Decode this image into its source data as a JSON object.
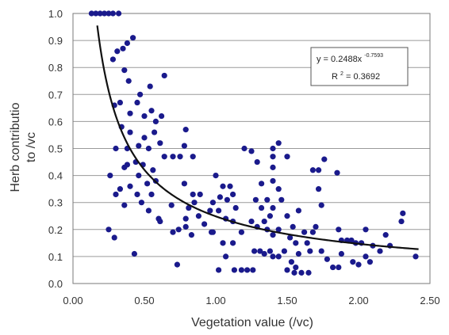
{
  "chart_data": {
    "type": "scatter",
    "xlabel": "Vegetation value (/vc)",
    "ylabel_lines": [
      "Herb contributio",
      "to /vc"
    ],
    "xlim": [
      0,
      2.5
    ],
    "ylim": [
      0,
      1.0
    ],
    "x_ticks": [
      "0.00",
      "0.50",
      "1.00",
      "1.50",
      "2.00",
      "2.50"
    ],
    "y_ticks": [
      "0.0",
      "0.1",
      "0.2",
      "0.3",
      "0.4",
      "0.5",
      "0.6",
      "0.7",
      "0.8",
      "0.9",
      "1.0"
    ],
    "grid": "horizontal",
    "marker_color": "#1a1a8c",
    "trend_color": "#111111",
    "trendline": {
      "type": "power",
      "coefficient": 0.2488,
      "exponent": -0.7593
    },
    "equation": {
      "base": "y = 0.2488x",
      "exponent": "-0.7593"
    },
    "r_squared": {
      "label": "R",
      "power": "2",
      "text": " = 0.3692"
    },
    "points": [
      [
        0.13,
        1.0
      ],
      [
        0.16,
        1.0
      ],
      [
        0.19,
        1.0
      ],
      [
        0.22,
        1.0
      ],
      [
        0.25,
        1.0
      ],
      [
        0.28,
        1.0
      ],
      [
        0.32,
        1.0
      ],
      [
        0.28,
        0.83
      ],
      [
        0.31,
        0.86
      ],
      [
        0.35,
        0.87
      ],
      [
        0.38,
        0.89
      ],
      [
        0.42,
        0.91
      ],
      [
        0.36,
        0.79
      ],
      [
        0.39,
        0.75
      ],
      [
        0.64,
        0.77
      ],
      [
        0.47,
        0.7
      ],
      [
        0.54,
        0.73
      ],
      [
        0.5,
        0.62
      ],
      [
        0.55,
        0.64
      ],
      [
        0.58,
        0.6
      ],
      [
        0.62,
        0.62
      ],
      [
        0.45,
        0.67
      ],
      [
        0.4,
        0.63
      ],
      [
        0.33,
        0.67
      ],
      [
        0.29,
        0.66
      ],
      [
        0.34,
        0.58
      ],
      [
        0.4,
        0.56
      ],
      [
        0.5,
        0.54
      ],
      [
        0.57,
        0.56
      ],
      [
        0.61,
        0.52
      ],
      [
        0.3,
        0.5
      ],
      [
        0.38,
        0.5
      ],
      [
        0.46,
        0.51
      ],
      [
        0.53,
        0.5
      ],
      [
        0.64,
        0.47
      ],
      [
        0.44,
        0.45
      ],
      [
        0.49,
        0.44
      ],
      [
        0.38,
        0.44
      ],
      [
        0.26,
        0.4
      ],
      [
        0.36,
        0.43
      ],
      [
        0.46,
        0.4
      ],
      [
        0.56,
        0.42
      ],
      [
        0.33,
        0.35
      ],
      [
        0.4,
        0.36
      ],
      [
        0.52,
        0.37
      ],
      [
        0.58,
        0.38
      ],
      [
        0.3,
        0.33
      ],
      [
        0.45,
        0.33
      ],
      [
        0.55,
        0.33
      ],
      [
        0.36,
        0.29
      ],
      [
        0.48,
        0.3
      ],
      [
        0.53,
        0.27
      ],
      [
        0.6,
        0.24
      ],
      [
        0.25,
        0.2
      ],
      [
        0.29,
        0.17
      ],
      [
        0.43,
        0.11
      ],
      [
        0.61,
        0.23
      ],
      [
        0.69,
        0.29
      ],
      [
        0.74,
        0.2
      ],
      [
        0.79,
        0.57
      ],
      [
        0.78,
        0.51
      ],
      [
        0.7,
        0.47
      ],
      [
        0.75,
        0.47
      ],
      [
        0.84,
        0.47
      ],
      [
        0.78,
        0.37
      ],
      [
        0.84,
        0.33
      ],
      [
        0.81,
        0.28
      ],
      [
        0.85,
        0.3
      ],
      [
        0.88,
        0.25
      ],
      [
        0.92,
        0.22
      ],
      [
        0.97,
        0.19
      ],
      [
        0.89,
        0.33
      ],
      [
        0.79,
        0.24
      ],
      [
        0.83,
        0.18
      ],
      [
        0.79,
        0.21
      ],
      [
        0.7,
        0.19
      ],
      [
        0.73,
        0.07
      ],
      [
        0.96,
        0.27
      ],
      [
        1.0,
        0.4
      ],
      [
        1.05,
        0.36
      ],
      [
        1.1,
        0.36
      ],
      [
        1.12,
        0.33
      ],
      [
        1.03,
        0.32
      ],
      [
        1.08,
        0.31
      ],
      [
        1.14,
        0.28
      ],
      [
        0.98,
        0.3
      ],
      [
        1.02,
        0.27
      ],
      [
        1.07,
        0.24
      ],
      [
        1.12,
        0.23
      ],
      [
        0.98,
        0.19
      ],
      [
        1.05,
        0.15
      ],
      [
        1.12,
        0.15
      ],
      [
        1.18,
        0.19
      ],
      [
        1.25,
        0.23
      ],
      [
        1.29,
        0.21
      ],
      [
        1.02,
        0.05
      ],
      [
        1.07,
        0.1
      ],
      [
        1.13,
        0.05
      ],
      [
        1.18,
        0.05
      ],
      [
        1.22,
        0.05
      ],
      [
        1.26,
        0.05
      ],
      [
        1.2,
        0.5
      ],
      [
        1.25,
        0.49
      ],
      [
        1.29,
        0.45
      ],
      [
        1.32,
        0.37
      ],
      [
        1.36,
        0.31
      ],
      [
        1.28,
        0.31
      ],
      [
        1.32,
        0.28
      ],
      [
        1.38,
        0.25
      ],
      [
        1.34,
        0.23
      ],
      [
        1.36,
        0.2
      ],
      [
        1.4,
        0.28
      ],
      [
        1.38,
        0.12
      ],
      [
        1.31,
        0.12
      ],
      [
        1.34,
        0.11
      ],
      [
        1.27,
        0.12
      ],
      [
        1.4,
        0.5
      ],
      [
        1.44,
        0.52
      ],
      [
        1.4,
        0.47
      ],
      [
        1.4,
        0.43
      ],
      [
        1.4,
        0.38
      ],
      [
        1.44,
        0.35
      ],
      [
        1.46,
        0.31
      ],
      [
        1.4,
        0.18
      ],
      [
        1.44,
        0.2
      ],
      [
        1.48,
        0.12
      ],
      [
        1.44,
        0.1
      ],
      [
        1.4,
        0.1
      ],
      [
        1.5,
        0.47
      ],
      [
        1.54,
        0.21
      ],
      [
        1.52,
        0.17
      ],
      [
        1.56,
        0.15
      ],
      [
        1.53,
        0.08
      ],
      [
        1.58,
        0.11
      ],
      [
        1.5,
        0.05
      ],
      [
        1.56,
        0.06
      ],
      [
        1.55,
        0.04
      ],
      [
        1.6,
        0.04
      ],
      [
        1.65,
        0.04
      ],
      [
        1.5,
        0.25
      ],
      [
        1.58,
        0.27
      ],
      [
        1.62,
        0.19
      ],
      [
        1.66,
        0.12
      ],
      [
        1.64,
        0.15
      ],
      [
        1.68,
        0.19
      ],
      [
        1.68,
        0.42
      ],
      [
        1.72,
        0.42
      ],
      [
        1.76,
        0.46
      ],
      [
        1.72,
        0.35
      ],
      [
        1.74,
        0.29
      ],
      [
        1.7,
        0.21
      ],
      [
        1.74,
        0.12
      ],
      [
        1.78,
        0.09
      ],
      [
        1.82,
        0.06
      ],
      [
        1.86,
        0.06
      ],
      [
        1.85,
        0.41
      ],
      [
        1.86,
        0.2
      ],
      [
        1.88,
        0.16
      ],
      [
        1.92,
        0.16
      ],
      [
        1.95,
        0.16
      ],
      [
        1.98,
        0.15
      ],
      [
        2.02,
        0.15
      ],
      [
        1.88,
        0.11
      ],
      [
        1.96,
        0.08
      ],
      [
        2.0,
        0.07
      ],
      [
        2.05,
        0.1
      ],
      [
        2.08,
        0.08
      ],
      [
        2.05,
        0.2
      ],
      [
        2.1,
        0.14
      ],
      [
        2.15,
        0.12
      ],
      [
        2.19,
        0.18
      ],
      [
        2.22,
        0.14
      ],
      [
        2.3,
        0.23
      ],
      [
        2.31,
        0.26
      ],
      [
        2.4,
        0.1
      ]
    ]
  }
}
